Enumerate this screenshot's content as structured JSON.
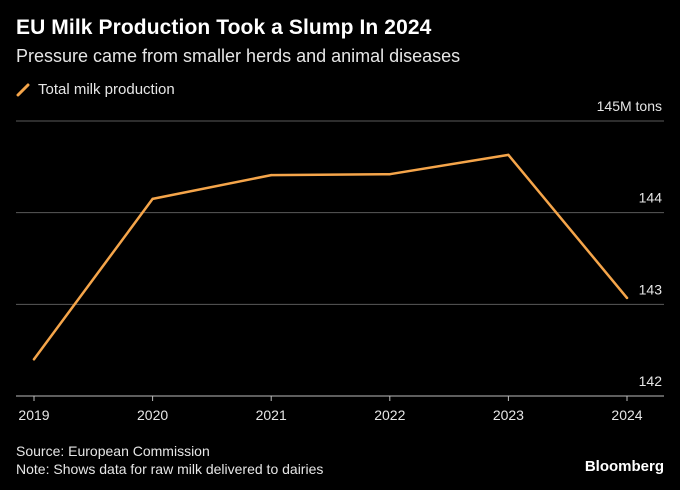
{
  "header": {
    "title": "EU Milk Production Took a Slump In 2024",
    "subtitle": "Pressure came from smaller herds and animal diseases"
  },
  "legend": {
    "label": "Total milk production"
  },
  "footer": {
    "source": "Source: European Commission",
    "note": "Note: Shows data for raw milk delivered to dairies",
    "brand": "Bloomberg"
  },
  "colors": {
    "background": "#000000",
    "line": "#f5a54a",
    "grid": "#5a5a5a",
    "text": "#e6e6e6"
  },
  "chart_data": {
    "type": "line",
    "x": [
      "2019",
      "2020",
      "2021",
      "2022",
      "2023",
      "2024"
    ],
    "series": [
      {
        "name": "Total milk production",
        "values": [
          142.4,
          144.15,
          144.41,
          144.42,
          144.63,
          143.07
        ]
      }
    ],
    "yticks": [
      {
        "value": 145,
        "label": "145M tons"
      },
      {
        "value": 144,
        "label": "144"
      },
      {
        "value": 143,
        "label": "143"
      },
      {
        "value": 142,
        "label": "142"
      }
    ],
    "ylim": [
      142,
      145
    ],
    "grid": true,
    "legend_position": "top-left"
  }
}
